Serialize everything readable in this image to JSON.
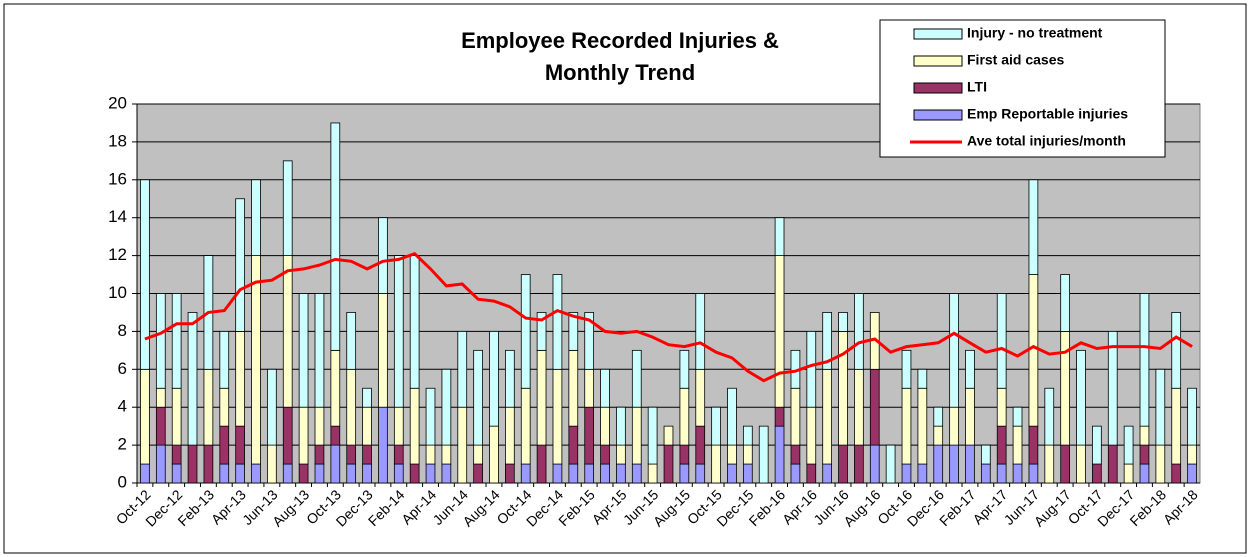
{
  "chart_data": {
    "type": "bar",
    "stacked": true,
    "title": "Employee Recorded Injuries & Monthly Trend",
    "categories": [
      "Oct-12",
      null,
      "Dec-12",
      null,
      "Feb-13",
      null,
      "Apr-13",
      null,
      "Jun-13",
      null,
      "Aug-13",
      null,
      "Oct-13",
      null,
      "Dec-13",
      null,
      "Feb-14",
      null,
      "Apr-14",
      null,
      "Jun-14",
      null,
      "Aug-14",
      null,
      "Oct-14",
      null,
      "Dec-14",
      null,
      "Feb-15",
      null,
      "Apr-15",
      null,
      "Jun-15",
      null,
      "Aug-15",
      null,
      "Oct-15",
      null,
      "Dec-15",
      null,
      "Feb-16",
      null,
      "Apr-16",
      null,
      "Jun-16",
      null,
      "Aug-16",
      null,
      "Oct-16",
      null,
      "Dec-16",
      null,
      "Feb-17",
      null,
      "Apr-17",
      null,
      "Jun-17",
      null,
      "Aug-17",
      null,
      "Oct-17",
      null,
      "Dec-17",
      null,
      "Feb-18",
      null,
      "Apr-18"
    ],
    "series": [
      {
        "name": "Emp Reportable injuries",
        "color": "#9999ff",
        "values": [
          1,
          2,
          1,
          0,
          0,
          1,
          1,
          1,
          0,
          1,
          0,
          1,
          2,
          1,
          1,
          4,
          1,
          0,
          1,
          1,
          0,
          0,
          0,
          0,
          1,
          0,
          1,
          1,
          1,
          1,
          1,
          1,
          0,
          0,
          1,
          1,
          0,
          1,
          1,
          0,
          3,
          1,
          0,
          1,
          0,
          0,
          2,
          0,
          1,
          1,
          2,
          2,
          2,
          1,
          1,
          1,
          1,
          0,
          0,
          0,
          0,
          0,
          0,
          1,
          0,
          0,
          1
        ]
      },
      {
        "name": "LTI",
        "color": "#993366",
        "values": [
          0,
          2,
          1,
          2,
          2,
          2,
          2,
          0,
          0,
          3,
          1,
          1,
          1,
          1,
          1,
          0,
          1,
          1,
          0,
          0,
          0,
          1,
          0,
          1,
          0,
          2,
          0,
          2,
          3,
          1,
          0,
          0,
          0,
          2,
          1,
          2,
          0,
          0,
          0,
          0,
          1,
          1,
          1,
          0,
          2,
          2,
          4,
          0,
          0,
          0,
          0,
          0,
          0,
          0,
          2,
          0,
          2,
          0,
          2,
          0,
          1,
          2,
          0,
          1,
          0,
          1,
          0
        ]
      },
      {
        "name": "First aid cases",
        "color": "#ffffcc",
        "values": [
          5,
          1,
          3,
          0,
          4,
          2,
          5,
          11,
          2,
          8,
          3,
          2,
          4,
          4,
          2,
          6,
          2,
          4,
          1,
          1,
          4,
          1,
          3,
          3,
          4,
          5,
          5,
          4,
          2,
          2,
          1,
          3,
          1,
          1,
          3,
          3,
          2,
          1,
          1,
          0,
          8,
          3,
          3,
          5,
          6,
          4,
          3,
          0,
          4,
          4,
          1,
          2,
          3,
          0,
          2,
          2,
          8,
          2,
          6,
          2,
          0,
          0,
          1,
          1,
          2,
          4,
          1
        ]
      },
      {
        "name": "Injury - no treatment",
        "color": "#ccffff",
        "values": [
          10,
          5,
          5,
          7,
          6,
          3,
          7,
          4,
          4,
          5,
          6,
          6,
          12,
          3,
          1,
          4,
          8,
          7,
          3,
          4,
          4,
          5,
          5,
          3,
          6,
          2,
          5,
          2,
          3,
          2,
          2,
          3,
          3,
          0,
          2,
          4,
          2,
          3,
          1,
          3,
          2,
          2,
          4,
          3,
          1,
          4,
          0,
          2,
          2,
          1,
          1,
          6,
          2,
          1,
          5,
          1,
          5,
          3,
          3,
          5,
          2,
          6,
          2,
          7,
          4,
          4,
          3
        ]
      },
      {
        "name": "Ave total injuries/month",
        "type": "line",
        "color": "#ff0000",
        "values": [
          7.6,
          7.9,
          8.4,
          8.4,
          9.0,
          9.1,
          10.2,
          10.6,
          10.7,
          11.2,
          11.3,
          11.5,
          11.8,
          11.7,
          11.3,
          11.7,
          11.8,
          12.1,
          11.3,
          10.4,
          10.5,
          9.7,
          9.6,
          9.3,
          8.7,
          8.6,
          9.1,
          8.8,
          8.6,
          8.0,
          7.9,
          8.0,
          7.7,
          7.3,
          7.2,
          7.4,
          6.9,
          6.6,
          5.9,
          5.4,
          5.8,
          5.9,
          6.2,
          6.4,
          6.8,
          7.4,
          7.6,
          6.9,
          7.2,
          7.3,
          7.4,
          7.9,
          7.4,
          6.9,
          7.1,
          6.7,
          7.2,
          6.8,
          6.9,
          7.4,
          7.1,
          7.2,
          7.2,
          7.2,
          7.1,
          7.7,
          7.2
        ]
      }
    ],
    "ylim": [
      0,
      20
    ],
    "yticks": [
      0,
      2,
      4,
      6,
      8,
      10,
      12,
      14,
      16,
      18,
      20
    ],
    "grid": true,
    "legend": "top-right"
  }
}
